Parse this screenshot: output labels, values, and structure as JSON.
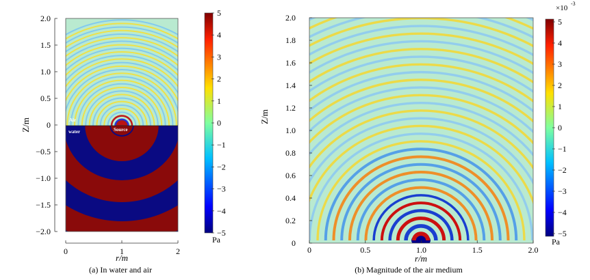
{
  "panels": [
    {
      "caption": "(a) In water and air",
      "xlabel": "r/m",
      "ylabel": "Z/m",
      "xticks": [
        "0",
        "1",
        "2"
      ],
      "yticks": [
        "2.0",
        "1.5",
        "1.0",
        "0.5",
        "0",
        "−0.5",
        "−1.0",
        "−1.5",
        "−2.0"
      ],
      "annotations": {
        "air": "Air",
        "water": "water",
        "source": "Source"
      },
      "colorbar": {
        "ticks": [
          "5",
          "4",
          "3",
          "2",
          "1",
          "0",
          "−1",
          "−2",
          "−3",
          "−4",
          "−5"
        ],
        "unit": "Pa"
      }
    },
    {
      "caption": "(b) Magnitude of the air medium",
      "xlabel": "r/m",
      "ylabel": "Z/m",
      "xticks": [
        "0",
        "0.5",
        "1.0",
        "1.5",
        "2.0"
      ],
      "yticks": [
        "2.0",
        "1.8",
        "1.6",
        "1.4",
        "1.2",
        "1.0",
        "0.8",
        "0.6",
        "0.4",
        "0.2",
        "0"
      ],
      "colorbar": {
        "ticks": [
          "5",
          "4",
          "3",
          "2",
          "1",
          "0",
          "−1",
          "−2",
          "−3",
          "−4",
          "−5"
        ],
        "unit": "Pa",
        "multiplier": "×10",
        "exponent": "-3"
      }
    }
  ],
  "chart_data": [
    {
      "type": "heatmap",
      "xlabel": "r/m",
      "ylabel": "Z/m",
      "xlim": [
        0,
        2
      ],
      "ylim": [
        -2,
        2
      ],
      "source_position": [
        1.0,
        0
      ],
      "colorbar_range": [
        -5,
        5
      ],
      "colorbar_unit": "Pa",
      "colormap": "jet"
    },
    {
      "type": "heatmap",
      "xlabel": "r/m",
      "ylabel": "Z/m",
      "xlim": [
        0,
        2
      ],
      "ylim": [
        0,
        2
      ],
      "source_position": [
        1.0,
        0
      ],
      "colorbar_range": [
        -5,
        5
      ],
      "colorbar_unit": "Pa",
      "colorbar_scale": "×10^-3",
      "colormap": "jet"
    }
  ]
}
